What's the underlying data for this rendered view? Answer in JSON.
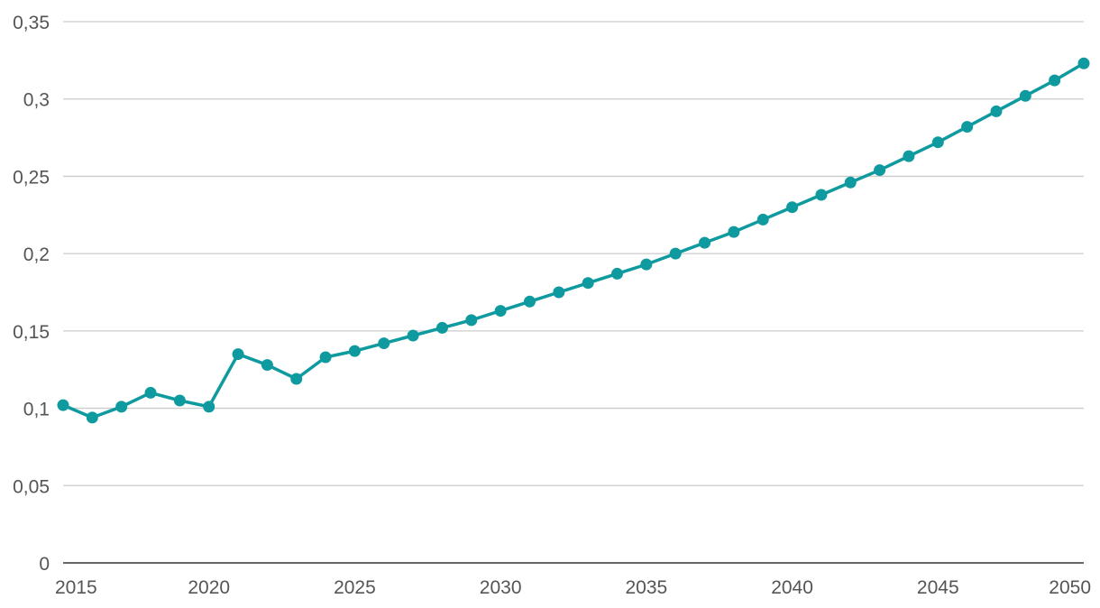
{
  "chart_data": {
    "type": "line",
    "title": "",
    "xlabel": "",
    "ylabel": "",
    "xlim": [
      2015,
      2050
    ],
    "ylim": [
      0,
      0.35
    ],
    "grid": true,
    "legend": "none",
    "x_ticks": [
      {
        "value": 2015,
        "label": "2015"
      },
      {
        "value": 2020,
        "label": "2020"
      },
      {
        "value": 2025,
        "label": "2025"
      },
      {
        "value": 2030,
        "label": "2030"
      },
      {
        "value": 2035,
        "label": "2035"
      },
      {
        "value": 2040,
        "label": "2040"
      },
      {
        "value": 2045,
        "label": "2045"
      },
      {
        "value": 2050,
        "label": "2050"
      }
    ],
    "y_ticks": [
      {
        "value": 0,
        "label": "0"
      },
      {
        "value": 0.05,
        "label": "0,05"
      },
      {
        "value": 0.1,
        "label": "0,1"
      },
      {
        "value": 0.15,
        "label": "0,15"
      },
      {
        "value": 0.2,
        "label": "0,2"
      },
      {
        "value": 0.25,
        "label": "0,25"
      },
      {
        "value": 0.3,
        "label": "0,3"
      },
      {
        "value": 0.35,
        "label": "0,35"
      }
    ],
    "series": [
      {
        "name": "",
        "color": "#0e9a9e",
        "x": [
          2015,
          2016,
          2017,
          2018,
          2019,
          2020,
          2021,
          2022,
          2023,
          2024,
          2025,
          2026,
          2027,
          2028,
          2029,
          2030,
          2031,
          2032,
          2033,
          2034,
          2035,
          2036,
          2037,
          2038,
          2039,
          2040,
          2041,
          2042,
          2043,
          2044,
          2045,
          2046,
          2047,
          2048,
          2049,
          2050
        ],
        "values": [
          0.102,
          0.094,
          0.101,
          0.11,
          0.105,
          0.101,
          0.135,
          0.128,
          0.119,
          0.133,
          0.137,
          0.142,
          0.147,
          0.152,
          0.157,
          0.163,
          0.169,
          0.175,
          0.181,
          0.187,
          0.193,
          0.2,
          0.207,
          0.214,
          0.222,
          0.23,
          0.238,
          0.246,
          0.254,
          0.263,
          0.272,
          0.282,
          0.292,
          0.302,
          0.312,
          0.323
        ]
      }
    ]
  }
}
